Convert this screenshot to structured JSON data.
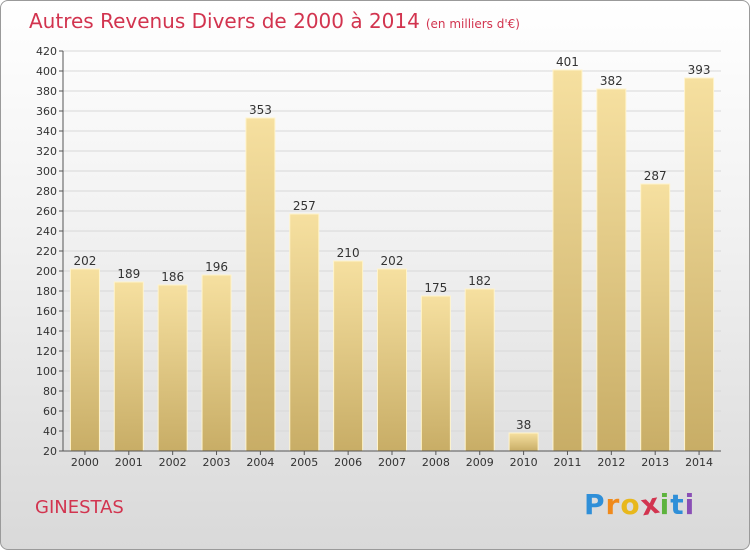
{
  "chart_data": {
    "type": "bar",
    "title": "Autres Revenus Divers de 2000 à 2014",
    "subtitle": "(en milliers d'€)",
    "categories": [
      "2000",
      "2001",
      "2002",
      "2003",
      "2004",
      "2005",
      "2006",
      "2007",
      "2008",
      "2009",
      "2010",
      "2011",
      "2012",
      "2013",
      "2014"
    ],
    "values": [
      202,
      189,
      186,
      196,
      353,
      257,
      210,
      202,
      175,
      182,
      38,
      401,
      382,
      287,
      393
    ],
    "ylim": [
      20,
      420
    ],
    "yticks": [
      20,
      40,
      60,
      80,
      100,
      120,
      140,
      160,
      180,
      200,
      220,
      240,
      260,
      280,
      300,
      320,
      340,
      360,
      380,
      400,
      420
    ],
    "grid": true,
    "bar_color": "#e8cd7e"
  },
  "place_name": "GINESTAS",
  "logo": {
    "letters": [
      "P",
      "r",
      "o",
      "x",
      "i",
      "t",
      "i"
    ],
    "colors": [
      "#2f8fd8",
      "#f08a1c",
      "#e8b81c",
      "#d2344f",
      "#5db33d",
      "#2f8fd8",
      "#8a4fb5"
    ]
  }
}
